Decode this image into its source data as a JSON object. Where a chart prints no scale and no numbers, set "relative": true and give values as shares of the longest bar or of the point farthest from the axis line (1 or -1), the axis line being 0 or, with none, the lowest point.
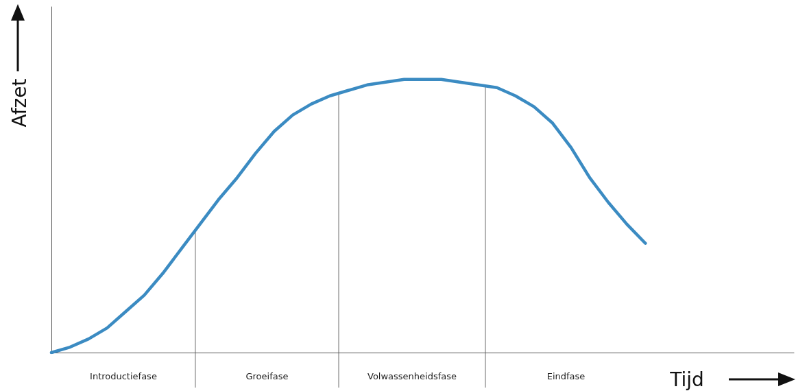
{
  "chart_data": {
    "type": "line",
    "relative": true,
    "xlabel": "Tijd",
    "ylabel": "Afzet",
    "categories": [
      null,
      null,
      null,
      null,
      null,
      null,
      null,
      null,
      null,
      null,
      null,
      null,
      null,
      null,
      null,
      null,
      null,
      null,
      null,
      null,
      null,
      null,
      null,
      null,
      null,
      null,
      null,
      null,
      null,
      null,
      null,
      null,
      null,
      null,
      null,
      null,
      null,
      null,
      null,
      null,
      null
    ],
    "grid": false,
    "marker": "none",
    "line_style": "solid",
    "series": [
      {
        "color": "#3b8bc2",
        "values": [
          0,
          0.02,
          0.05,
          0.09,
          0.15,
          0.21,
          0.29,
          0.38,
          0.47,
          0.56,
          0.64,
          0.73,
          0.81,
          0.87,
          0.91,
          0.94,
          0.96,
          0.98,
          0.99,
          1.0,
          1.0,
          1.0,
          0.99,
          0.98,
          0.97,
          0.94,
          0.9,
          0.84,
          0.75,
          0.64,
          0.55,
          0.47,
          0.4,
          null,
          null,
          null,
          null,
          null,
          null,
          null,
          null
        ]
      }
    ],
    "annotations": [
      "Introductiefase",
      "Groeifase",
      "Volwassenheidsfase",
      "Eindfase"
    ]
  }
}
